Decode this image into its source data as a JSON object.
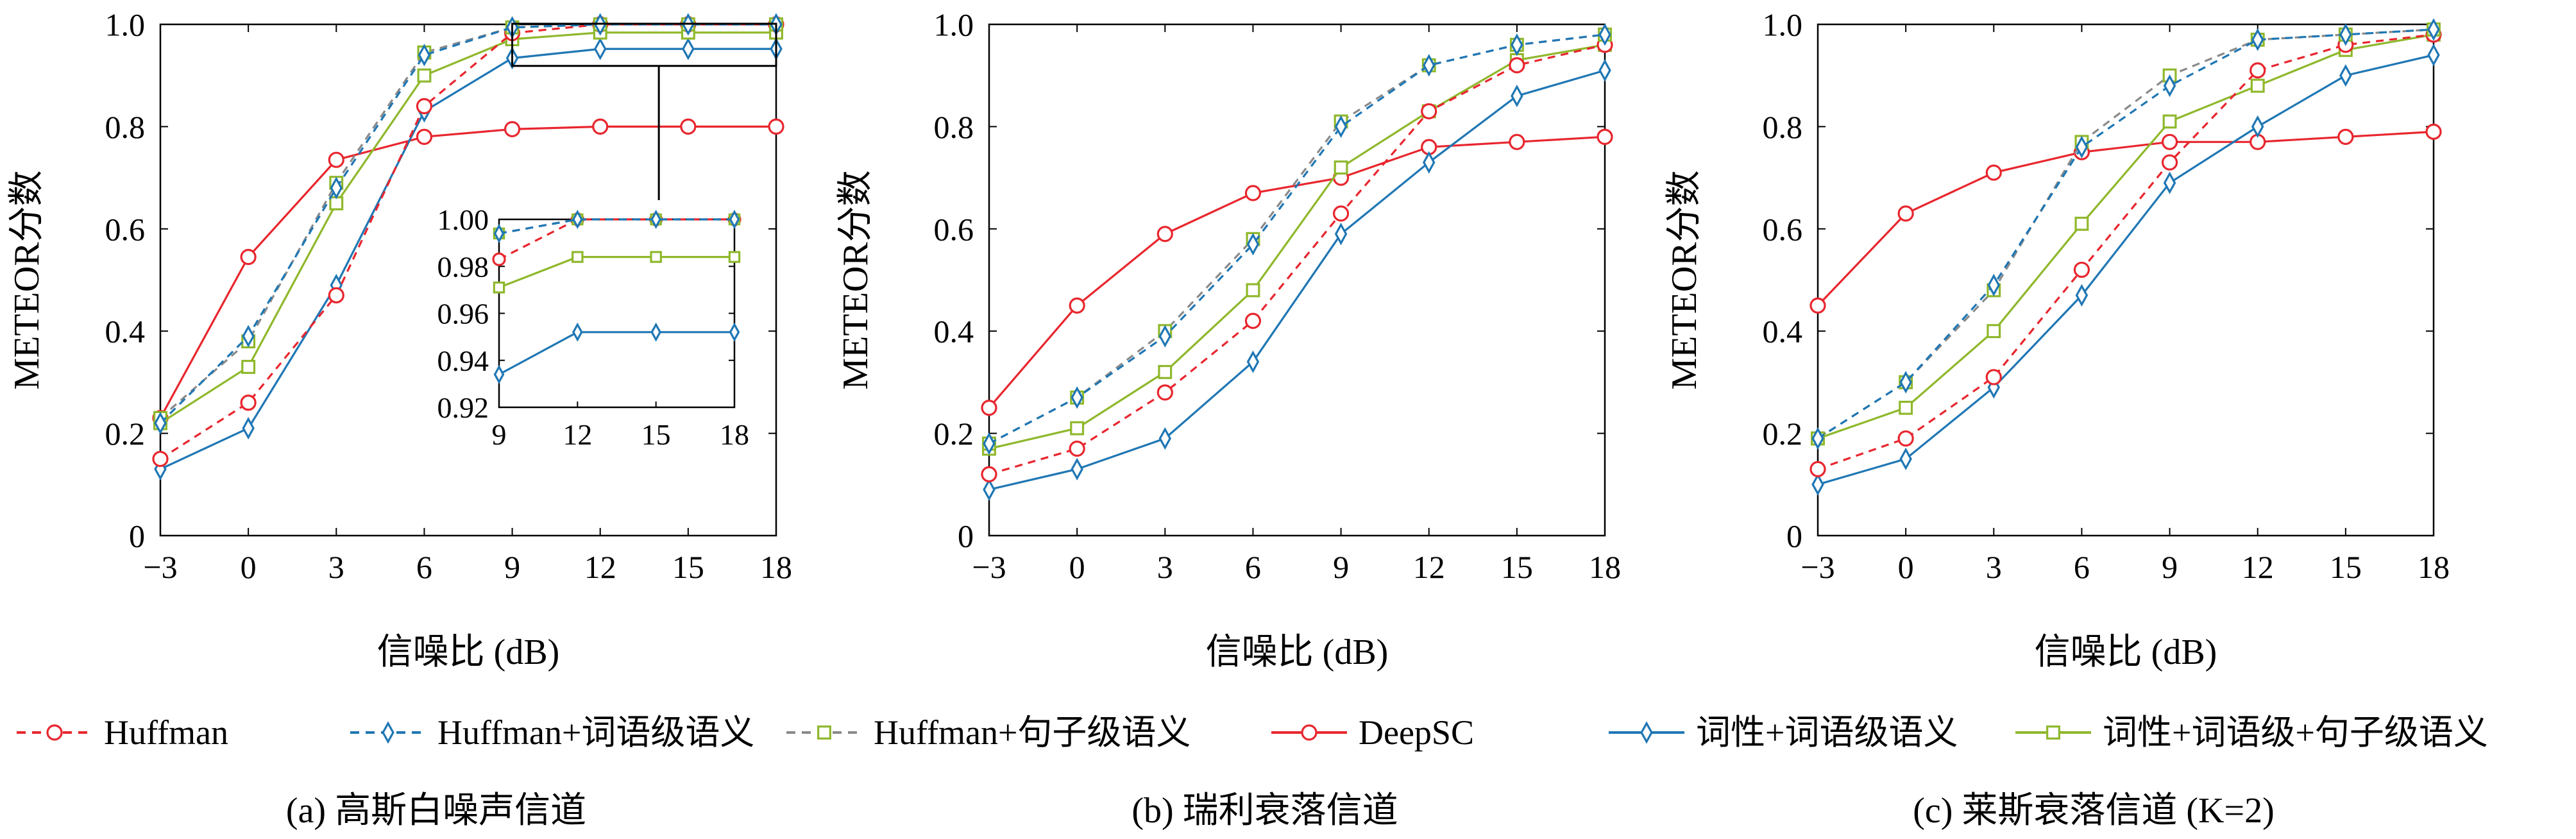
{
  "figure": {
    "legend": [
      {
        "key": "huffman",
        "label": "Huffman",
        "color": "#e8262e",
        "marker": "circle",
        "dash": "dashed"
      },
      {
        "key": "huffman_word",
        "label": "Huffman+词语级语义",
        "color": "#1f77b4",
        "marker": "diamond",
        "dash": "dashed"
      },
      {
        "key": "huffman_sentence",
        "label": "Huffman+句子级语义",
        "color": "#8fb82c",
        "marker": "square",
        "dash": "dashed"
      },
      {
        "key": "deepsc",
        "label": "DeepSC",
        "color": "#e8262e",
        "marker": "circle",
        "dash": "solid"
      },
      {
        "key": "pos_word",
        "label": "词性+词语级语义",
        "color": "#1f77b4",
        "marker": "diamond",
        "dash": "solid"
      },
      {
        "key": "pos_word_sentence",
        "label": "词性+词语级+句子级语义",
        "color": "#8fb82c",
        "marker": "square",
        "dash": "solid"
      }
    ],
    "marker_colors": {
      "huffman": "#e8262e",
      "huffman_word": "#1f77b4",
      "huffman_sentence": "#8fb82c",
      "deepsc": "#e8262e",
      "pos_word": "#1f77b4",
      "pos_word_sentence": "#8fb82c"
    },
    "muted_colors": {
      "huffman_sentence": "#8a8a8a"
    }
  },
  "chart_data": [
    {
      "type": "line",
      "caption": "(a) 高斯白噪声信道",
      "xlabel": "信噪比 (dB)",
      "ylabel": "METEOR分数",
      "x": [
        -3,
        0,
        3,
        6,
        9,
        12,
        15,
        18
      ],
      "xticks": [
        "−3",
        "0",
        "3",
        "6",
        "9",
        "12",
        "15",
        "18"
      ],
      "yticks": [
        "0",
        "0.2",
        "0.4",
        "0.6",
        "0.8",
        "1.0"
      ],
      "xlim": [
        -3,
        18
      ],
      "ylim": [
        0,
        1.0
      ],
      "series": [
        {
          "key": "huffman",
          "name": "Huffman",
          "values": [
            0.15,
            0.26,
            0.47,
            0.84,
            0.983,
            1.0,
            1.0,
            1.0
          ]
        },
        {
          "key": "huffman_word",
          "name": "Huffman+词语级语义",
          "values": [
            0.22,
            0.39,
            0.68,
            0.94,
            0.994,
            1.0,
            1.0,
            1.0
          ]
        },
        {
          "key": "huffman_sentence",
          "name": "Huffman+句子级语义",
          "values": [
            0.23,
            0.38,
            0.69,
            0.945,
            0.994,
            1.0,
            1.0,
            1.0
          ]
        },
        {
          "key": "deepsc",
          "name": "DeepSC",
          "values": [
            0.23,
            0.545,
            0.735,
            0.78,
            0.795,
            0.8,
            0.8,
            0.8
          ]
        },
        {
          "key": "pos_word",
          "name": "词性+词语级语义",
          "values": [
            0.13,
            0.21,
            0.49,
            0.83,
            0.934,
            0.952,
            0.952,
            0.952
          ]
        },
        {
          "key": "pos_word_sentence",
          "name": "词性+词语级+句子级语义",
          "values": [
            0.22,
            0.33,
            0.65,
            0.9,
            0.971,
            0.984,
            0.984,
            0.984
          ]
        }
      ],
      "inset": {
        "x": [
          9,
          12,
          15,
          18
        ],
        "xticks": [
          "9",
          "12",
          "15",
          "18"
        ],
        "yticks": [
          "0.92",
          "0.94",
          "0.96",
          "0.98",
          "1.00"
        ],
        "xlim": [
          9,
          18
        ],
        "ylim": [
          0.92,
          1.0
        ]
      }
    },
    {
      "type": "line",
      "caption": "(b) 瑞利衰落信道",
      "xlabel": "信噪比 (dB)",
      "ylabel": "METEOR分数",
      "x": [
        -3,
        0,
        3,
        6,
        9,
        12,
        15,
        18
      ],
      "xticks": [
        "−3",
        "0",
        "3",
        "6",
        "9",
        "12",
        "15",
        "18"
      ],
      "yticks": [
        "0",
        "0.2",
        "0.4",
        "0.6",
        "0.8",
        "1.0"
      ],
      "xlim": [
        -3,
        18
      ],
      "ylim": [
        0,
        1.0
      ],
      "series": [
        {
          "key": "huffman",
          "name": "Huffman",
          "values": [
            0.12,
            0.17,
            0.28,
            0.42,
            0.63,
            0.83,
            0.92,
            0.96
          ]
        },
        {
          "key": "huffman_word",
          "name": "Huffman+词语级语义",
          "values": [
            0.18,
            0.27,
            0.39,
            0.57,
            0.8,
            0.92,
            0.96,
            0.98
          ]
        },
        {
          "key": "huffman_sentence",
          "name": "Huffman+句子级语义",
          "values": [
            0.18,
            0.27,
            0.4,
            0.58,
            0.81,
            0.92,
            0.96,
            0.98
          ]
        },
        {
          "key": "deepsc",
          "name": "DeepSC",
          "values": [
            0.25,
            0.45,
            0.59,
            0.67,
            0.7,
            0.76,
            0.77,
            0.78
          ]
        },
        {
          "key": "pos_word",
          "name": "词性+词语级语义",
          "values": [
            0.09,
            0.13,
            0.19,
            0.34,
            0.59,
            0.73,
            0.86,
            0.91
          ]
        },
        {
          "key": "pos_word_sentence",
          "name": "词性+词语级+句子级语义",
          "values": [
            0.17,
            0.21,
            0.32,
            0.48,
            0.72,
            0.83,
            0.93,
            0.96
          ]
        }
      ]
    },
    {
      "type": "line",
      "caption": "(c) 莱斯衰落信道 (K=2)",
      "xlabel": "信噪比 (dB)",
      "ylabel": "METEOR分数",
      "x": [
        -3,
        0,
        3,
        6,
        9,
        12,
        15,
        18
      ],
      "xticks": [
        "−3",
        "0",
        "3",
        "6",
        "9",
        "12",
        "15",
        "18"
      ],
      "yticks": [
        "0",
        "0.2",
        "0.4",
        "0.6",
        "0.8",
        "1.0"
      ],
      "xlim": [
        -3,
        18
      ],
      "ylim": [
        0,
        1.0
      ],
      "series": [
        {
          "key": "huffman",
          "name": "Huffman",
          "values": [
            0.13,
            0.19,
            0.31,
            0.52,
            0.73,
            0.91,
            0.96,
            0.98
          ]
        },
        {
          "key": "huffman_word",
          "name": "Huffman+词语级语义",
          "values": [
            0.19,
            0.3,
            0.49,
            0.76,
            0.88,
            0.97,
            0.98,
            0.99
          ]
        },
        {
          "key": "huffman_sentence",
          "name": "Huffman+句子级语义",
          "values": [
            0.19,
            0.3,
            0.48,
            0.77,
            0.9,
            0.97,
            0.98,
            0.99
          ]
        },
        {
          "key": "deepsc",
          "name": "DeepSC",
          "values": [
            0.45,
            0.63,
            0.71,
            0.75,
            0.77,
            0.77,
            0.78,
            0.79
          ]
        },
        {
          "key": "pos_word",
          "name": "词性+词语级语义",
          "values": [
            0.1,
            0.15,
            0.29,
            0.47,
            0.69,
            0.8,
            0.9,
            0.94
          ]
        },
        {
          "key": "pos_word_sentence",
          "name": "词性+词语级+句子级语义",
          "values": [
            0.19,
            0.25,
            0.4,
            0.61,
            0.81,
            0.88,
            0.95,
            0.98
          ]
        }
      ]
    }
  ]
}
